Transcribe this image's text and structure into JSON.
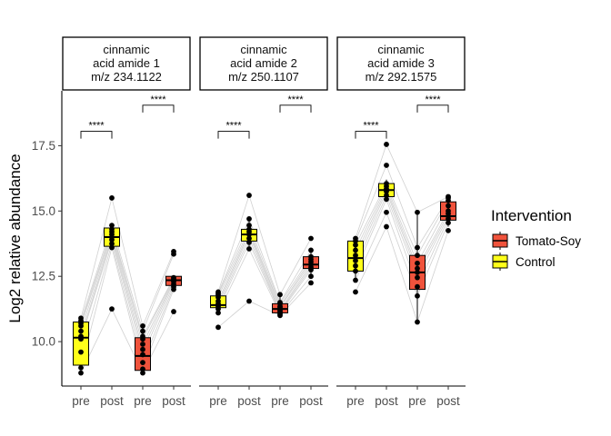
{
  "chart_data": {
    "type": "box",
    "ylabel": "Log2 relative abundance",
    "xlabel": "",
    "ylim": [
      8.3,
      19.6
    ],
    "yticks": [
      "10.0",
      "12.5",
      "15.0",
      "17.5"
    ],
    "ytick_values": [
      10.0,
      12.5,
      15.0,
      17.5
    ],
    "grid": false,
    "legend": {
      "title": "Intervention",
      "position": "right",
      "entries": [
        {
          "name": "Tomato-Soy",
          "color": "#F0533C"
        },
        {
          "name": "Control",
          "color": "#FFFF1A"
        }
      ]
    },
    "panels": [
      {
        "strip": [
          "cinnamic",
          "acid amide 1",
          "m/z 234.1122"
        ],
        "categories": [
          "pre",
          "post",
          "pre",
          "post"
        ],
        "boxes": [
          {
            "intervention": "Control",
            "min": 8.8,
            "q1": 9.1,
            "median": 10.15,
            "q3": 10.75,
            "max": 10.9
          },
          {
            "intervention": "Control",
            "min": 13.55,
            "q1": 13.65,
            "median": 14.0,
            "q3": 14.35,
            "max": 14.5
          },
          {
            "intervention": "Tomato-Soy",
            "min": 8.8,
            "q1": 8.9,
            "median": 9.45,
            "q3": 10.15,
            "max": 10.6
          },
          {
            "intervention": "Tomato-Soy",
            "min": 12.0,
            "q1": 12.15,
            "median": 12.35,
            "q3": 12.5,
            "max": 12.5
          }
        ],
        "points": [
          [
            8.8,
            9.0,
            9.6,
            10.1,
            10.2,
            10.4,
            10.6,
            10.7,
            10.8,
            10.9
          ],
          [
            11.25,
            13.6,
            13.75,
            13.9,
            14.0,
            14.1,
            14.2,
            14.3,
            14.45,
            15.5
          ],
          [
            8.8,
            8.95,
            9.2,
            9.5,
            9.7,
            9.9,
            10.1,
            10.2,
            10.4,
            10.6
          ],
          [
            11.15,
            12.0,
            12.1,
            12.2,
            12.3,
            12.35,
            12.4,
            12.45,
            13.35,
            13.45
          ]
        ],
        "significance": [
          {
            "from": 0,
            "to": 1,
            "y": 18.05,
            "label": "****"
          },
          {
            "from": 2,
            "to": 3,
            "y": 19.05,
            "label": "****"
          }
        ]
      },
      {
        "strip": [
          "cinnamic",
          "acid amide 2",
          "m/z 250.1107"
        ],
        "categories": [
          "pre",
          "post",
          "pre",
          "post"
        ],
        "boxes": [
          {
            "intervention": "Control",
            "min": 11.1,
            "q1": 11.3,
            "median": 11.4,
            "q3": 11.75,
            "max": 11.9
          },
          {
            "intervention": "Control",
            "min": 13.6,
            "q1": 13.85,
            "median": 14.1,
            "q3": 14.3,
            "max": 14.75
          },
          {
            "intervention": "Tomato-Soy",
            "min": 11.0,
            "q1": 11.1,
            "median": 11.25,
            "q3": 11.45,
            "max": 11.8
          },
          {
            "intervention": "Tomato-Soy",
            "min": 12.5,
            "q1": 12.8,
            "median": 12.95,
            "q3": 13.25,
            "max": 13.5
          }
        ],
        "points": [
          [
            10.55,
            11.1,
            11.25,
            11.35,
            11.45,
            11.55,
            11.7,
            11.8,
            11.85,
            11.9
          ],
          [
            11.55,
            13.55,
            13.8,
            13.95,
            14.1,
            14.2,
            14.3,
            14.45,
            14.7,
            15.6
          ],
          [
            11.0,
            11.05,
            11.1,
            11.15,
            11.2,
            11.3,
            11.35,
            11.45,
            11.5,
            11.8
          ],
          [
            12.25,
            12.5,
            12.75,
            12.85,
            12.95,
            13.05,
            13.15,
            13.25,
            13.5,
            13.95
          ]
        ],
        "significance": [
          {
            "from": 0,
            "to": 1,
            "y": 18.05,
            "label": "****"
          },
          {
            "from": 2,
            "to": 3,
            "y": 19.05,
            "label": "****"
          }
        ]
      },
      {
        "strip": [
          "cinnamic",
          "acid amide 3",
          "m/z 292.1575"
        ],
        "categories": [
          "pre",
          "post",
          "pre",
          "post"
        ],
        "boxes": [
          {
            "intervention": "Control",
            "min": 12.3,
            "q1": 12.7,
            "median": 13.2,
            "q3": 13.85,
            "max": 13.95
          },
          {
            "intervention": "Control",
            "min": 15.35,
            "q1": 15.55,
            "median": 15.8,
            "q3": 16.05,
            "max": 16.2
          },
          {
            "intervention": "Tomato-Soy",
            "min": 10.75,
            "q1": 12.0,
            "median": 12.65,
            "q3": 13.3,
            "max": 14.95
          },
          {
            "intervention": "Tomato-Soy",
            "min": 14.4,
            "q1": 14.65,
            "median": 14.8,
            "q3": 15.35,
            "max": 15.55
          }
        ],
        "points": [
          [
            11.9,
            12.35,
            12.7,
            12.9,
            13.1,
            13.3,
            13.5,
            13.7,
            13.85,
            13.95
          ],
          [
            14.4,
            14.95,
            15.45,
            15.6,
            15.75,
            15.85,
            15.95,
            16.05,
            16.75,
            17.55
          ],
          [
            10.75,
            11.75,
            12.1,
            12.45,
            12.65,
            12.8,
            13.0,
            13.3,
            13.6,
            14.95
          ],
          [
            14.25,
            14.55,
            14.7,
            14.8,
            14.9,
            15.0,
            15.2,
            15.4,
            15.5,
            15.55
          ]
        ],
        "significance": [
          {
            "from": 0,
            "to": 1,
            "y": 18.05,
            "label": "****"
          },
          {
            "from": 2,
            "to": 3,
            "y": 19.05,
            "label": "****"
          }
        ]
      }
    ]
  }
}
